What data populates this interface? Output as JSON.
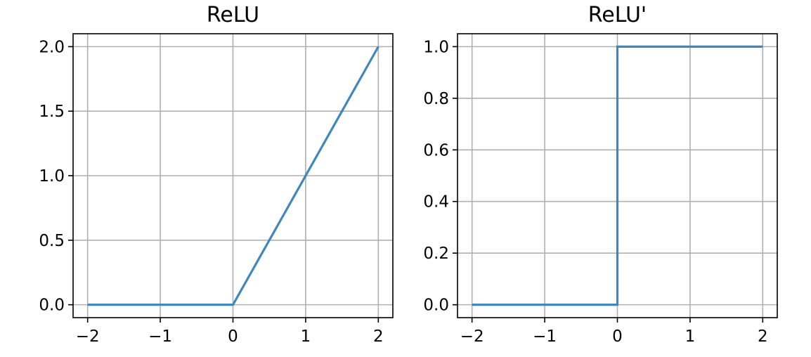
{
  "chart_data": [
    {
      "type": "line",
      "title": "ReLU",
      "xlabel": "",
      "ylabel": "",
      "xlim": [
        -2.2,
        2.2
      ],
      "ylim": [
        -0.1,
        2.1
      ],
      "xticks": [
        -2,
        -1,
        0,
        1,
        2
      ],
      "xtick_labels": [
        "−2",
        "−1",
        "0",
        "1",
        "2"
      ],
      "yticks": [
        0.0,
        0.5,
        1.0,
        1.5,
        2.0
      ],
      "ytick_labels": [
        "0.0",
        "0.5",
        "1.0",
        "1.5",
        "2.0"
      ],
      "grid": true,
      "series": [
        {
          "color": "#3f87bd",
          "x": [
            -2,
            0,
            2
          ],
          "y": [
            0,
            0,
            2
          ]
        }
      ]
    },
    {
      "type": "line",
      "title": "ReLU'",
      "xlabel": "",
      "ylabel": "",
      "xlim": [
        -2.2,
        2.2
      ],
      "ylim": [
        -0.05,
        1.05
      ],
      "xticks": [
        -2,
        -1,
        0,
        1,
        2
      ],
      "xtick_labels": [
        "−2",
        "−1",
        "0",
        "1",
        "2"
      ],
      "yticks": [
        0.0,
        0.2,
        0.4,
        0.6,
        0.8,
        1.0
      ],
      "ytick_labels": [
        "0.0",
        "0.2",
        "0.4",
        "0.6",
        "0.8",
        "1.0"
      ],
      "grid": true,
      "series": [
        {
          "color": "#3f87bd",
          "x": [
            -2,
            0,
            0,
            2
          ],
          "y": [
            0,
            0,
            1,
            1
          ]
        }
      ]
    }
  ]
}
